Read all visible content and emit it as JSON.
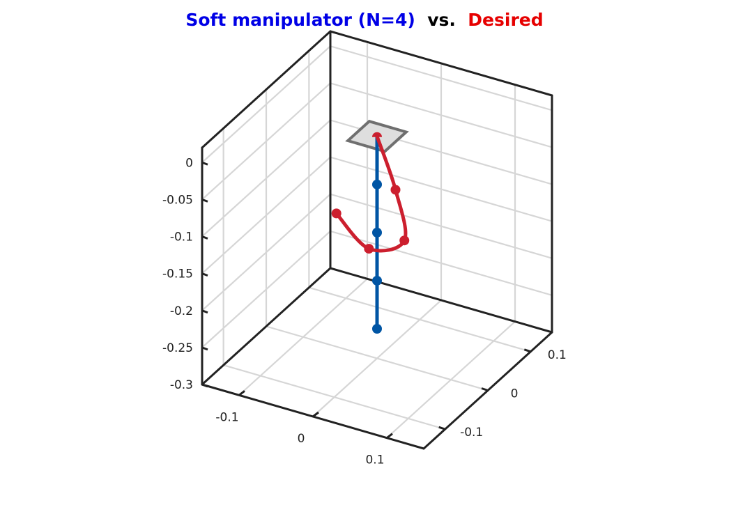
{
  "title": {
    "part1": "Soft manipulator (N=4)",
    "separator": "  vs.  ",
    "part2": "Desired",
    "colors": {
      "part1": "#0000e6",
      "separator": "#000000",
      "part2": "#e60000"
    }
  },
  "chart_data": {
    "type": "line3d",
    "grid": true,
    "view": "isometric box, z vertical",
    "axes": {
      "x": {
        "ticks": [
          -0.1,
          0,
          0.1
        ],
        "tick_labels": [
          "-0.1",
          "0",
          "0.1"
        ],
        "range": [
          -0.15,
          0.15
        ]
      },
      "y": {
        "ticks": [
          -0.1,
          0,
          0.1
        ],
        "tick_labels": [
          "-0.1",
          "0",
          "0.1"
        ],
        "range": [
          -0.15,
          0.15
        ]
      },
      "z": {
        "ticks": [
          0,
          -0.05,
          -0.1,
          -0.15,
          -0.2,
          -0.25,
          -0.3
        ],
        "tick_labels": [
          "0",
          "-0.05",
          "-0.1",
          "-0.15",
          "-0.2",
          "-0.25",
          "-0.3"
        ],
        "range": [
          -0.3,
          0.02
        ]
      }
    },
    "series": [
      {
        "color": "#0055a4",
        "nodes": [
          [
            0,
            0,
            0
          ],
          [
            0,
            0,
            -0.065
          ],
          [
            0,
            0,
            -0.13
          ],
          [
            0,
            0,
            -0.195
          ],
          [
            0,
            0,
            -0.26
          ]
        ]
      },
      {
        "color": "#cc1f2e",
        "nodes": [
          [
            0,
            0,
            0
          ],
          [
            0.025,
            0,
            -0.065
          ],
          [
            0.037,
            0,
            -0.13
          ],
          [
            -0.011,
            0,
            -0.155
          ],
          [
            -0.055,
            0,
            -0.12
          ]
        ]
      }
    ],
    "base_plate": {
      "fill": "#dedede",
      "stroke": "#6f6f6f",
      "marker_color": "#cc1f2e"
    }
  }
}
